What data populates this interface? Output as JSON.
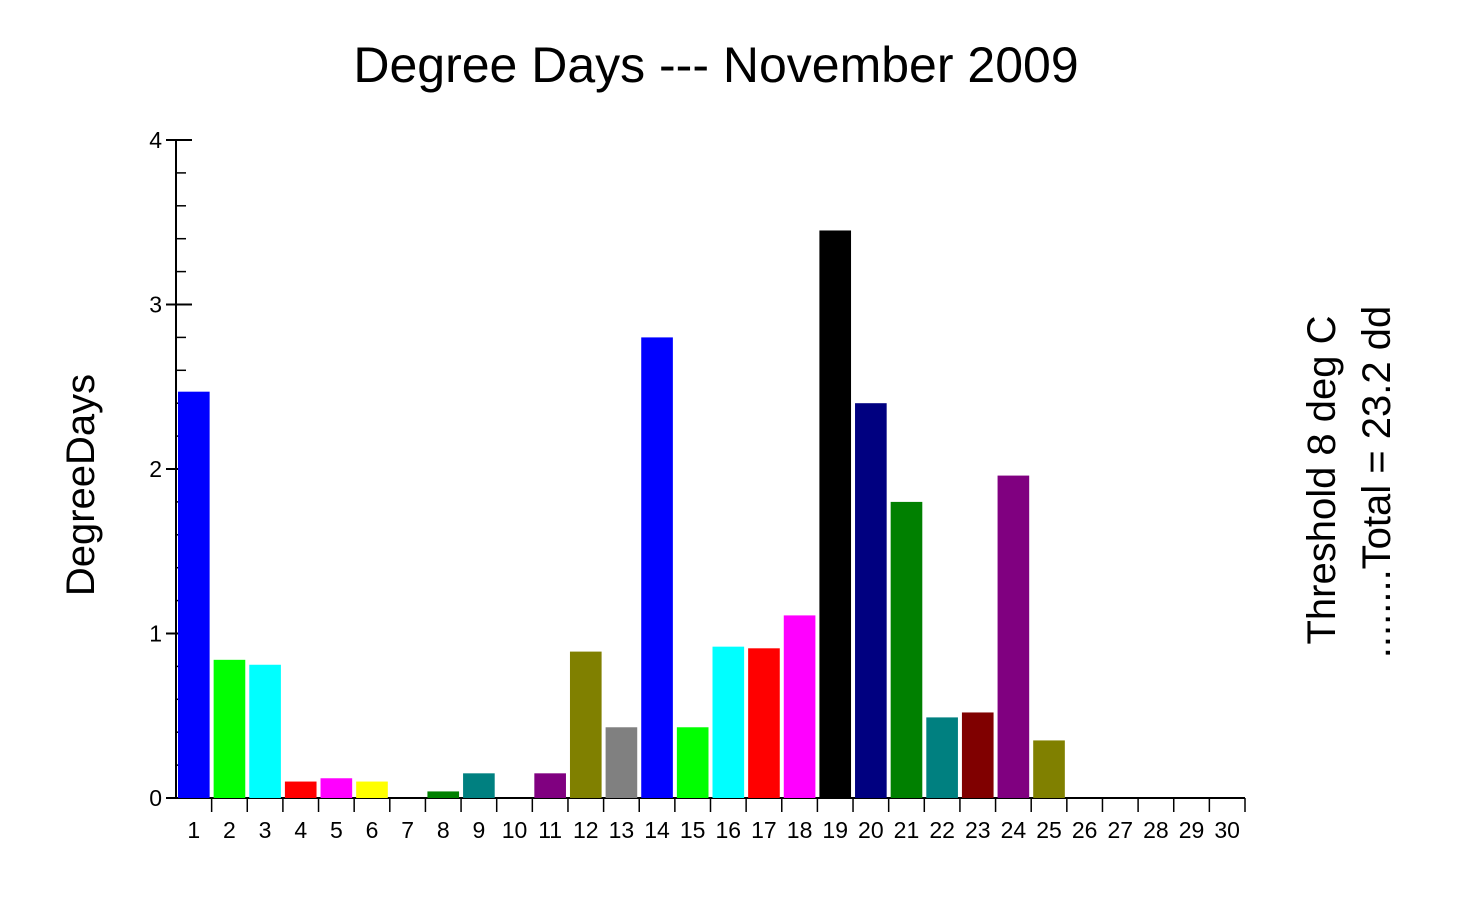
{
  "chart_data": {
    "type": "bar",
    "title": "Degree Days --- November 2009",
    "y_label": "DegreeDays",
    "annotations": [
      "Threshold  8 deg C",
      "........Total = 23.2 dd"
    ],
    "categories": [
      "1",
      "2",
      "3",
      "4",
      "5",
      "6",
      "7",
      "8",
      "9",
      "10",
      "11",
      "12",
      "13",
      "14",
      "15",
      "16",
      "17",
      "18",
      "19",
      "20",
      "21",
      "22",
      "23",
      "24",
      "25",
      "26",
      "27",
      "28",
      "29",
      "30"
    ],
    "values": [
      2.47,
      0.84,
      0.81,
      0.1,
      0.12,
      0.1,
      0,
      0.04,
      0.15,
      0,
      0.15,
      0.89,
      0.43,
      2.8,
      0.43,
      0.92,
      0.91,
      1.11,
      3.45,
      2.4,
      1.8,
      0.49,
      0.52,
      1.96,
      0.35,
      0,
      0,
      0,
      0,
      0
    ],
    "colors": [
      "#0000ff",
      "#00ff00",
      "#00ffff",
      "#ff0000",
      "#ff00ff",
      "#ffff00",
      "#000000",
      "#008000",
      "#008080",
      "#000080",
      "#800080",
      "#808000",
      "#808080",
      "#0000ff",
      "#00ff00",
      "#00ffff",
      "#ff0000",
      "#ff00ff",
      "#000000",
      "#000080",
      "#008000",
      "#008080",
      "#800000",
      "#800080",
      "#808000",
      "#808080",
      "#808080",
      "#808080",
      "#808080",
      "#808080"
    ],
    "ylim": [
      0,
      4
    ],
    "yticks": [
      0,
      1,
      2,
      3,
      4
    ],
    "minor_ticks_per_major": 5
  }
}
